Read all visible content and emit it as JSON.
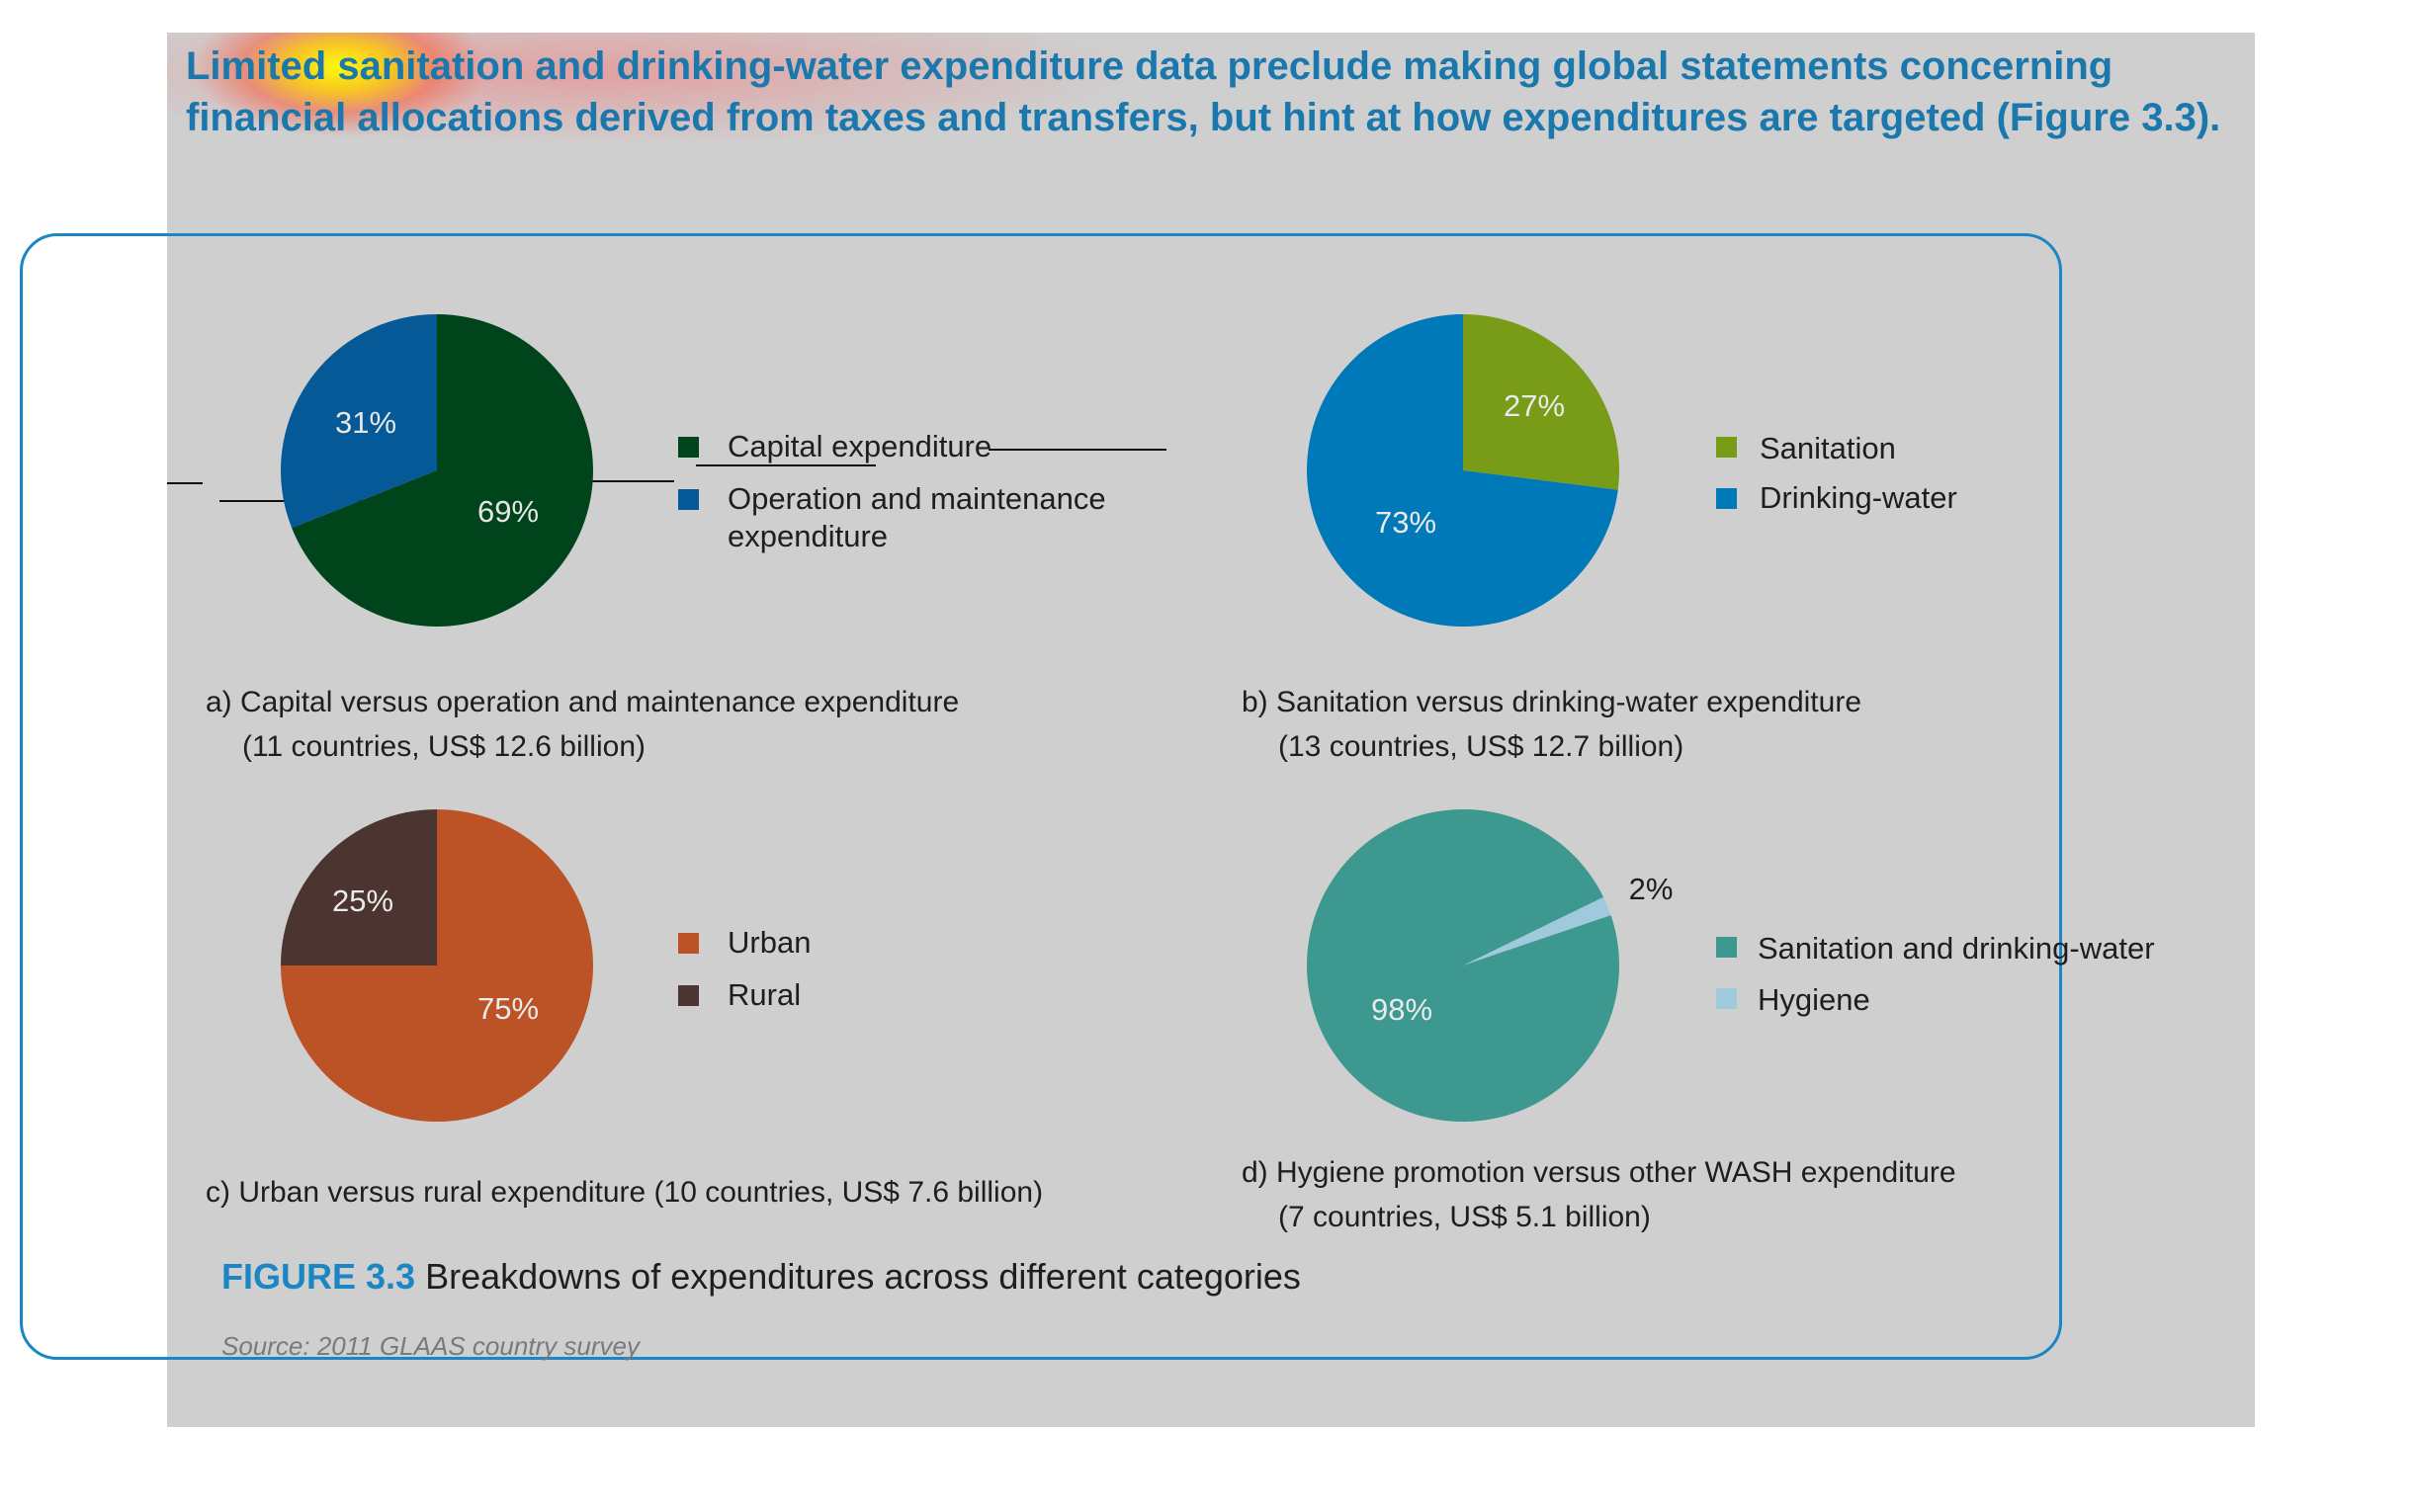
{
  "heading": "Limited sanitation and drinking-water expenditure data preclude making global statements concerning financial allocations derived from taxes and transfers, but hint at how expenditures are targeted (Figure 3.3).",
  "figure": {
    "number": "FIGURE 3.3",
    "title": "Breakdowns of expenditures across different categories",
    "source": "Source: 2011 GLAAS country survey"
  },
  "chart_data": [
    {
      "type": "pie",
      "caption_line1": "a) Capital versus operation and maintenance expenditure",
      "caption_line2": "(11 countries, US$ 12.6 billion)",
      "slices": [
        {
          "label": "Capital expenditure",
          "value": 69,
          "value_label": "69%",
          "color": "#00441c"
        },
        {
          "label": "Operation and maintenance expenditure",
          "legend_line1": "Operation and maintenance",
          "legend_line2": "expenditure",
          "value": 31,
          "value_label": "31%",
          "color": "#055996"
        }
      ]
    },
    {
      "type": "pie",
      "caption_line1": "b) Sanitation versus drinking-water expenditure",
      "caption_line2": "(13 countries, US$ 12.7 billion)",
      "slices": [
        {
          "label": "Sanitation",
          "value": 27,
          "value_label": "27%",
          "color": "#789c18"
        },
        {
          "label": "Drinking-water",
          "value": 73,
          "value_label": "73%",
          "color": "#0079b8"
        }
      ]
    },
    {
      "type": "pie",
      "caption_line1": "c) Urban versus rural expenditure (10 countries, US$ 7.6 billion)",
      "slices": [
        {
          "label": "Urban",
          "value": 75,
          "value_label": "75%",
          "color": "#bc5326"
        },
        {
          "label": "Rural",
          "value": 25,
          "value_label": "25%",
          "color": "#4c3430"
        }
      ]
    },
    {
      "type": "pie",
      "caption_line1": "d) Hygiene promotion versus other WASH expenditure",
      "caption_line2": "(7 countries, US$ 5.1 billion)",
      "slices": [
        {
          "label": "Sanitation and drinking-water",
          "value": 98,
          "value_label": "98%",
          "color": "#3d9890"
        },
        {
          "label": "Hygiene",
          "value": 2,
          "value_label": "2%",
          "color": "#9ecadb"
        }
      ]
    }
  ]
}
